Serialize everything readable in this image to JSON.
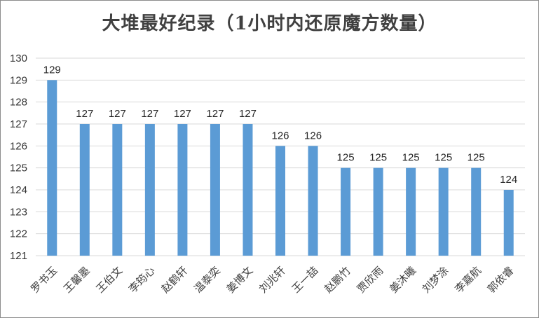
{
  "chart_data": {
    "type": "bar",
    "title": "大堆最好纪录（1小时内还原魔方数量）",
    "categories": [
      "罗书玉",
      "王馨墨",
      "王伯文",
      "李筠心",
      "赵鹤轩",
      "温泰奕",
      "姜博文",
      "刘兆轩",
      "王一喆",
      "赵鹏竹",
      "贾欣雨",
      "姜沐曦",
      "刘梦涂",
      "李嘉航",
      "郭依睿"
    ],
    "values": [
      129,
      127,
      127,
      127,
      127,
      127,
      127,
      126,
      126,
      125,
      125,
      125,
      125,
      125,
      124
    ],
    "ylim": [
      121,
      130
    ],
    "yticks": [
      121,
      122,
      123,
      124,
      125,
      126,
      127,
      128,
      129,
      130
    ],
    "grid": true,
    "bar_color": "#5b9bd5",
    "grid_color": "#d9d9d9",
    "xlabel": "",
    "ylabel": ""
  }
}
